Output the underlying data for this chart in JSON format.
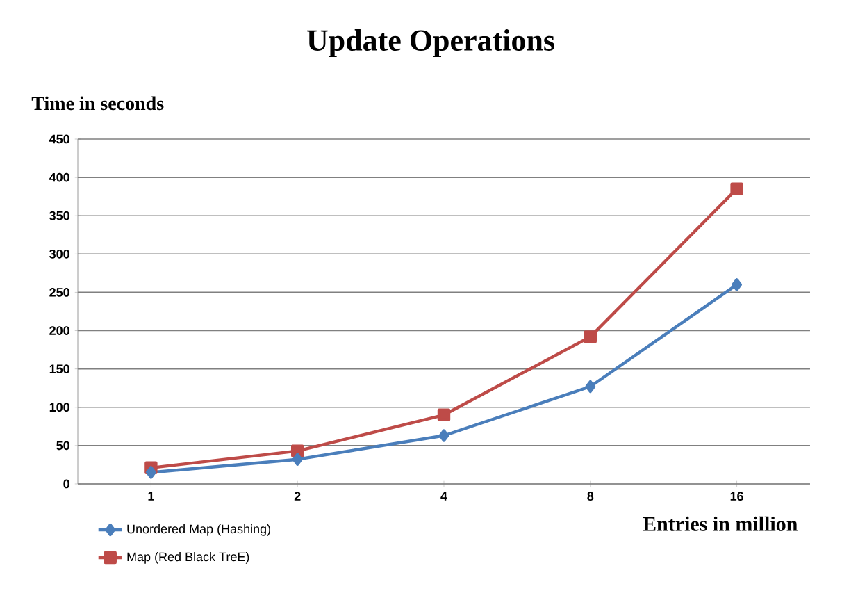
{
  "chart_data": {
    "type": "line",
    "title": "Update Operations",
    "ylabel": "Time in seconds",
    "xlabel": "Entries in million",
    "categories": [
      "1",
      "2",
      "4",
      "8",
      "16"
    ],
    "series": [
      {
        "name": "Unordered Map (Hashing)",
        "color": "#4a7ebb",
        "marker": "diamond",
        "values": [
          15,
          32,
          63,
          127,
          260
        ]
      },
      {
        "name": "Map (Red Black TreE)",
        "color": "#be4b48",
        "marker": "square",
        "values": [
          21,
          43,
          90,
          192,
          385
        ]
      }
    ],
    "ylim": [
      0,
      450
    ],
    "yticks": [
      0,
      50,
      100,
      150,
      200,
      250,
      300,
      350,
      400,
      450
    ],
    "grid": "y",
    "legend": "bottom left",
    "line_style": "solid"
  }
}
